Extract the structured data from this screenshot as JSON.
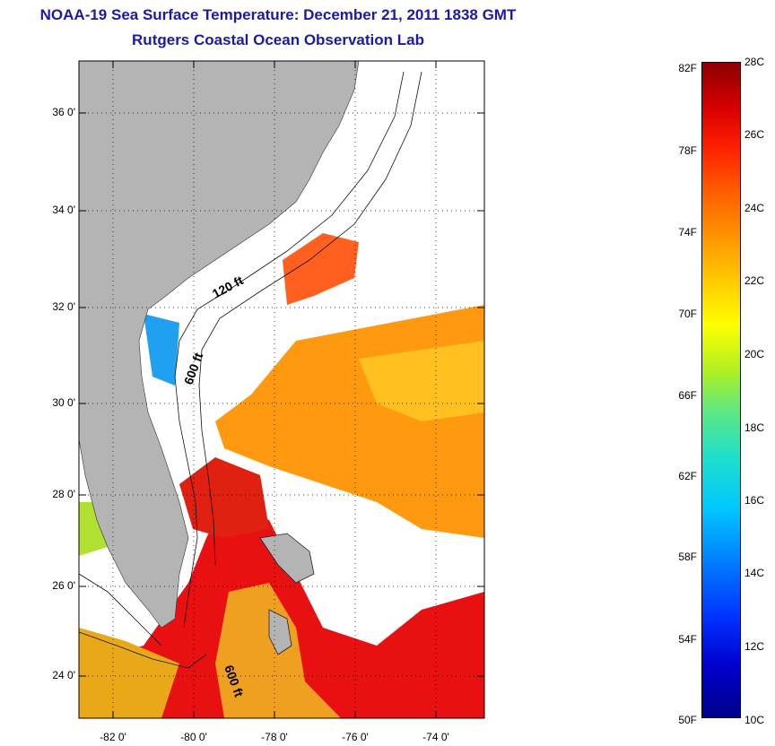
{
  "title": {
    "line1": "NOAA-19 Sea Surface Temperature:  December 21, 2011 1838 GMT",
    "line2": "Rutgers Coastal Ocean Observation Lab"
  },
  "map": {
    "lat_labels": [
      "36 0'",
      "34 0'",
      "32 0'",
      "30 0'",
      "28 0'",
      "26 0'",
      "24 0'"
    ],
    "lon_labels": [
      "-82 0'",
      "-80 0'",
      "-78 0'",
      "-76 0'",
      "-74 0'"
    ],
    "contour_labels": [
      "120 ft",
      "600 ft",
      "600 ft"
    ],
    "colors": {
      "land": "#b4b4b4",
      "ocean_nodata": "#ffffff"
    }
  },
  "colorbar": {
    "fahrenheit": [
      "82F",
      "78F",
      "74F",
      "70F",
      "66F",
      "62F",
      "58F",
      "54F",
      "50F"
    ],
    "celsius": [
      "28C",
      "26C",
      "24C",
      "22C",
      "20C",
      "18C",
      "16C",
      "14C",
      "12C",
      "10C"
    ],
    "range_c": [
      10,
      28
    ],
    "range_f": [
      50,
      82
    ]
  }
}
